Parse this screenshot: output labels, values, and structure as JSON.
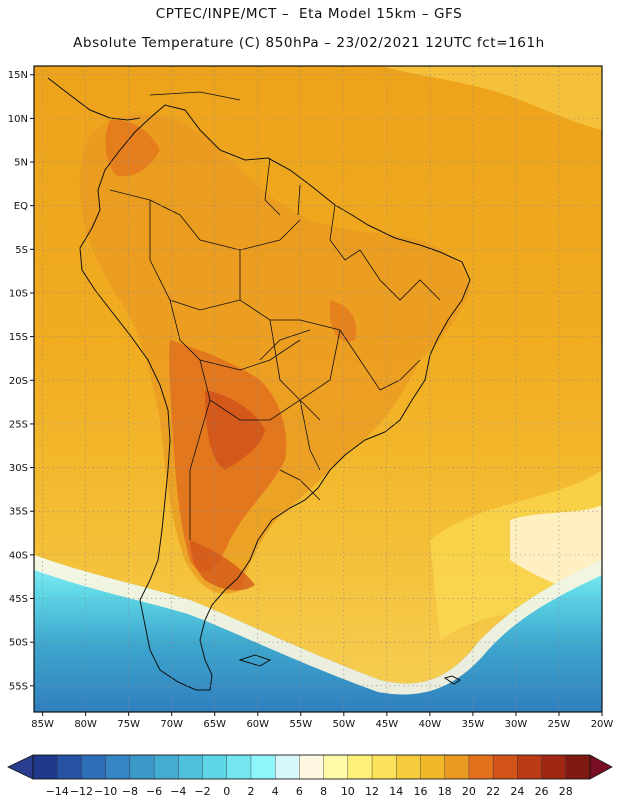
{
  "header": {
    "title_line1": "CPTEC/INPE/MCT –  Eta Model 15km – GFS",
    "title_line2": "Absolute Temperature (C) 850hPa – 23/02/2021 12UTC fct=161h"
  },
  "map": {
    "lat_labels": [
      "15N",
      "10N",
      "5N",
      "EQ",
      "5S",
      "10S",
      "15S",
      "20S",
      "25S",
      "30S",
      "35S",
      "40S",
      "45S",
      "50S",
      "55S"
    ],
    "lon_labels": [
      "85W",
      "80W",
      "75W",
      "70W",
      "65W",
      "60W",
      "55W",
      "50W",
      "45W",
      "40W",
      "35W",
      "30W",
      "25W",
      "20W"
    ],
    "extent": {
      "lon_min": -86,
      "lon_max": -20,
      "lat_min": -58,
      "lat_max": 16
    }
  },
  "colorbar": {
    "labels": [
      "-14",
      "-12",
      "-10",
      "-8",
      "-6",
      "-4",
      "-2",
      "0",
      "2",
      "4",
      "6",
      "8",
      "10",
      "12",
      "14",
      "16",
      "18",
      "20",
      "22",
      "24",
      "26",
      "28"
    ],
    "colors": [
      "#1f3a8a",
      "#2552a3",
      "#2e6db8",
      "#3584c4",
      "#3b98c9",
      "#44abd1",
      "#4fc0dc",
      "#5ed6e6",
      "#73e6ef",
      "#8ef5fb",
      "#d6f7fb",
      "#fff7e0",
      "#fffaa8",
      "#fff07a",
      "#fce25a",
      "#f6cc3c",
      "#f0b82a",
      "#ea9a22",
      "#e2701c",
      "#d2541a",
      "#bb3a16",
      "#9e2612",
      "#7f1a12"
    ],
    "under_color": "#2a3d8f",
    "over_color": "#7a0e22"
  }
}
